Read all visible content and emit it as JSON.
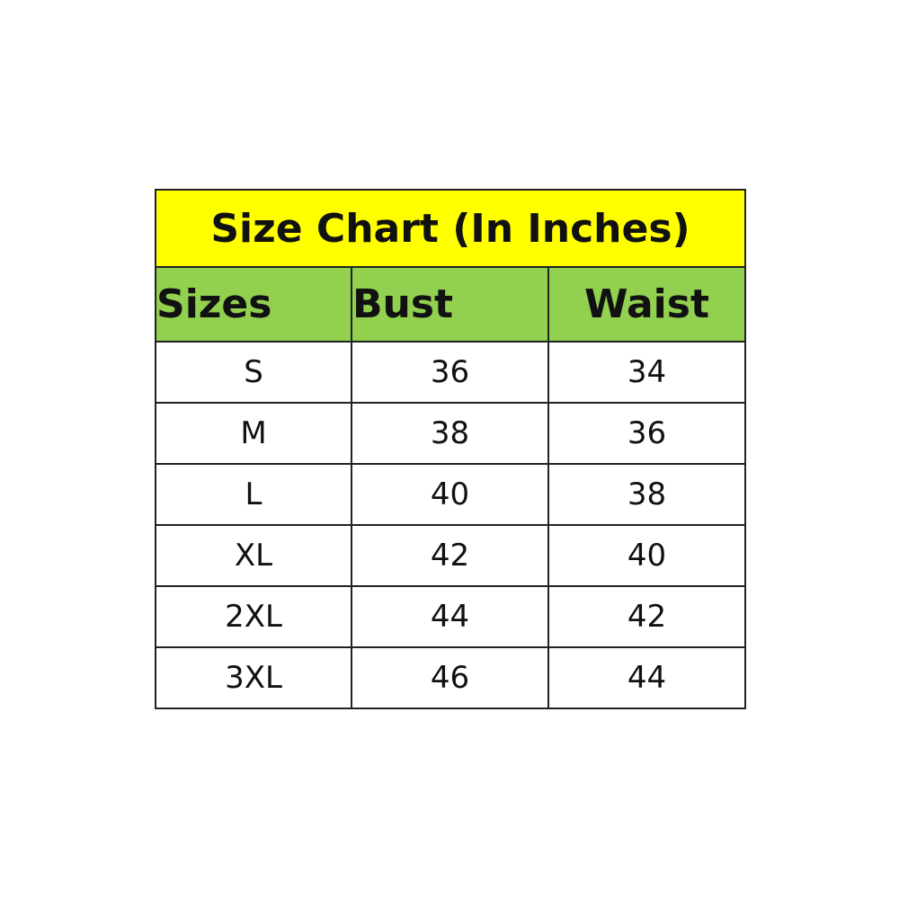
{
  "title": "Size Chart (In Inches)",
  "colors": {
    "title_bg": "#ffff00",
    "header_bg": "#92d050",
    "border": "#222222"
  },
  "columns": [
    "Sizes",
    "Bust",
    "Waist"
  ],
  "rows": [
    [
      "S",
      "36",
      "34"
    ],
    [
      "M",
      "38",
      "36"
    ],
    [
      "L",
      "40",
      "38"
    ],
    [
      "XL",
      "42",
      "40"
    ],
    [
      "2XL",
      "44",
      "42"
    ],
    [
      "3XL",
      "46",
      "44"
    ]
  ]
}
